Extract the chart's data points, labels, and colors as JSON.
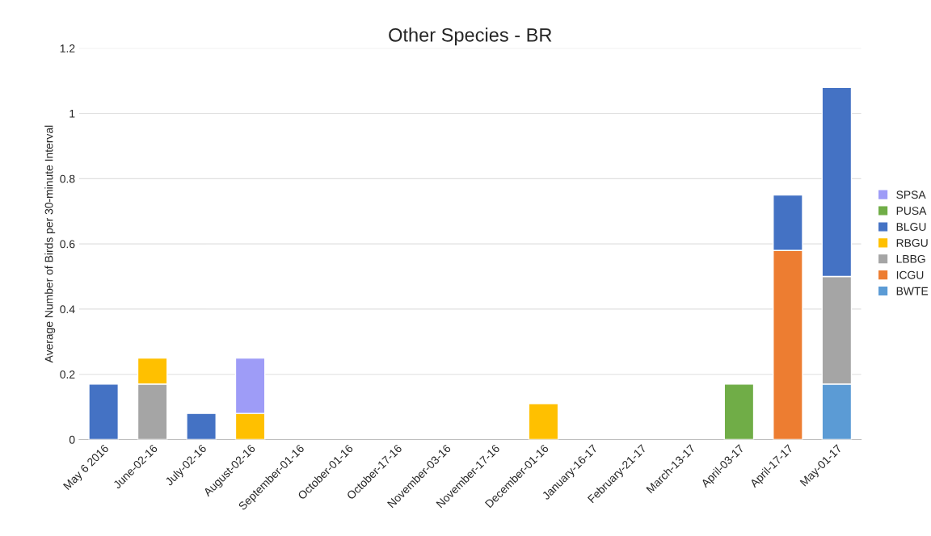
{
  "chart_data": {
    "type": "bar",
    "title": "Other Species - BR",
    "ylabel": "Average Number of Birds per 30-minute Interval",
    "categories": [
      "May 6 2016",
      "June-02-16",
      "July-02-16",
      "August-02-16",
      "September-01-16",
      "October-01-16",
      "October-17-16",
      "November-03-16",
      "November-17-16",
      "December-01-16",
      "January-16-17",
      "February-21-17",
      "March-13-17",
      "April-03-17",
      "April-17-17",
      "May-01-17"
    ],
    "stacked": true,
    "series": [
      {
        "name": "BWTE",
        "color": "#5b9bd5",
        "values": [
          null,
          null,
          null,
          null,
          null,
          null,
          null,
          null,
          null,
          null,
          null,
          null,
          null,
          null,
          null,
          0.17
        ]
      },
      {
        "name": "ICGU",
        "color": "#ed7d31",
        "values": [
          null,
          null,
          null,
          null,
          null,
          null,
          null,
          null,
          null,
          null,
          null,
          null,
          null,
          null,
          0.58,
          null
        ]
      },
      {
        "name": "LBBG",
        "color": "#a5a5a5",
        "values": [
          null,
          0.17,
          null,
          null,
          null,
          null,
          null,
          null,
          null,
          null,
          null,
          null,
          null,
          null,
          null,
          0.33
        ]
      },
      {
        "name": "RBGU",
        "color": "#ffc000",
        "values": [
          null,
          0.08,
          null,
          0.08,
          null,
          null,
          null,
          null,
          null,
          0.11,
          null,
          null,
          null,
          null,
          null,
          null
        ]
      },
      {
        "name": "BLGU",
        "color": "#4472c4",
        "values": [
          0.17,
          null,
          0.08,
          null,
          null,
          null,
          null,
          null,
          null,
          null,
          null,
          null,
          null,
          null,
          0.17,
          0.58
        ]
      },
      {
        "name": "PUSA",
        "color": "#70ad47",
        "values": [
          null,
          null,
          null,
          null,
          null,
          null,
          null,
          null,
          null,
          null,
          null,
          null,
          null,
          0.17,
          null,
          null
        ]
      },
      {
        "name": "SPSA",
        "color": "#9e9cf7",
        "values": [
          null,
          null,
          null,
          0.17,
          null,
          null,
          null,
          null,
          null,
          null,
          null,
          null,
          null,
          null,
          null,
          null
        ]
      }
    ],
    "ylim": [
      0,
      1.2
    ],
    "yticks": [
      0,
      0.2,
      0.4,
      0.6,
      0.8,
      1,
      1.2
    ],
    "grid": "y",
    "legend": "right"
  }
}
